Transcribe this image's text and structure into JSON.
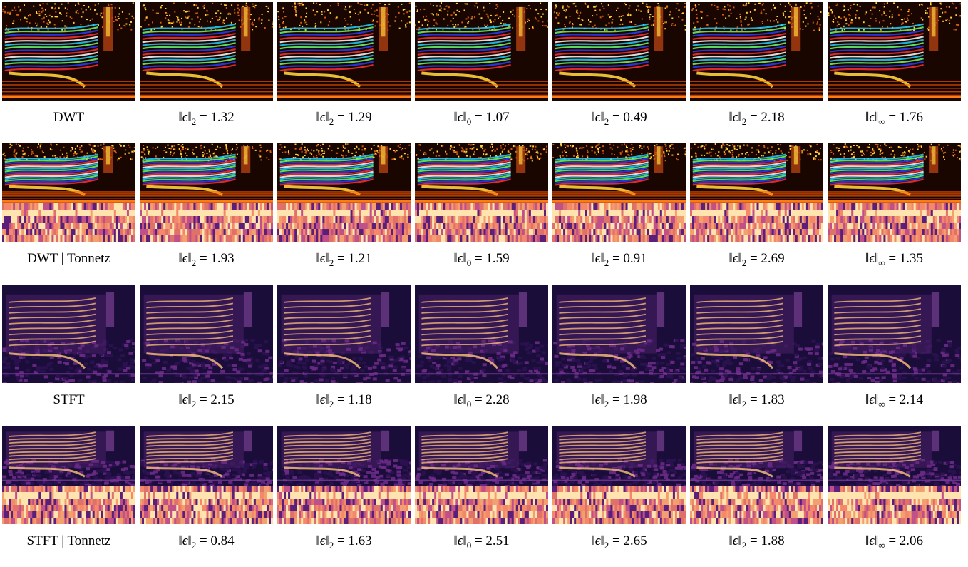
{
  "rows": [
    {
      "label": "DWT",
      "style": "dwt",
      "tonnetz": false,
      "captions": [
        {
          "norm": "2",
          "value": "1.32"
        },
        {
          "norm": "2",
          "value": "1.29"
        },
        {
          "norm": "0",
          "value": "1.07"
        },
        {
          "norm": "2",
          "value": "0.49"
        },
        {
          "norm": "2",
          "value": "2.18"
        },
        {
          "norm": "∞",
          "value": "1.76"
        }
      ]
    },
    {
      "label": "DWT | Tonnetz",
      "style": "dwt",
      "tonnetz": true,
      "captions": [
        {
          "norm": "2",
          "value": "1.93"
        },
        {
          "norm": "2",
          "value": "1.21"
        },
        {
          "norm": "0",
          "value": "1.59"
        },
        {
          "norm": "2",
          "value": "0.91"
        },
        {
          "norm": "2",
          "value": "2.69"
        },
        {
          "norm": "∞",
          "value": "1.35"
        }
      ]
    },
    {
      "label": "STFT",
      "style": "stft",
      "tonnetz": false,
      "captions": [
        {
          "norm": "2",
          "value": "2.15"
        },
        {
          "norm": "2",
          "value": "1.18"
        },
        {
          "norm": "0",
          "value": "2.28"
        },
        {
          "norm": "2",
          "value": "1.98"
        },
        {
          "norm": "2",
          "value": "1.83"
        },
        {
          "norm": "∞",
          "value": "2.14"
        }
      ]
    },
    {
      "label": "STFT | Tonnetz",
      "style": "stft",
      "tonnetz": true,
      "captions": [
        {
          "norm": "2",
          "value": "0.84"
        },
        {
          "norm": "2",
          "value": "1.63"
        },
        {
          "norm": "0",
          "value": "2.51"
        },
        {
          "norm": "2",
          "value": "2.65"
        },
        {
          "norm": "2",
          "value": "1.88"
        },
        {
          "norm": "∞",
          "value": "2.06"
        }
      ]
    }
  ],
  "symbols": {
    "epsilon": "ϵ",
    "bars": "‖",
    "equals": "="
  },
  "colors": {
    "dwt_bg": "#1a0600",
    "dwt_high": "#ffd23c",
    "dwt_jet_a": "#22d0ff",
    "dwt_jet_b": "#6bff6b",
    "dwt_jet_c": "#2a3dff",
    "stft_bg": "#1a0d3a",
    "stft_mid": "#6a2a86",
    "stft_high": "#ffc47a",
    "tonnetz_pale": "#ffe4b0",
    "tonnetz_orange": "#f5876a",
    "tonnetz_purple": "#5a1f7a"
  }
}
